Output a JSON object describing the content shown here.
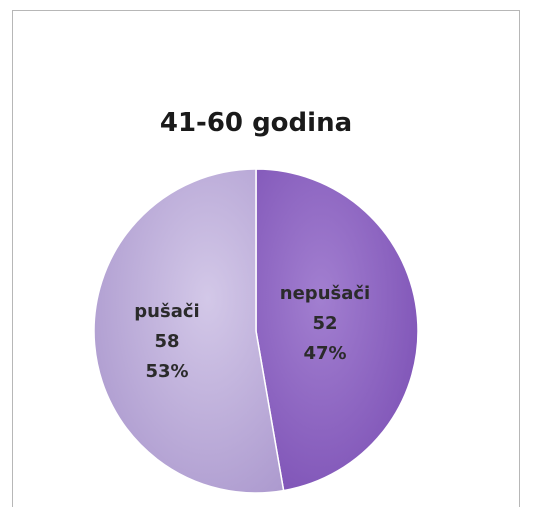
{
  "chart_data": {
    "type": "pie",
    "title": "41-60 godina",
    "slices": [
      {
        "name": "nepušači",
        "value": 52,
        "percent": "47%",
        "color": "#8a5cbf"
      },
      {
        "name": "pušači",
        "value": 58,
        "percent": "53%",
        "color": "#b9a9d6"
      }
    ],
    "start_angle_deg": 0,
    "direction": "clockwise",
    "legend": "none"
  }
}
